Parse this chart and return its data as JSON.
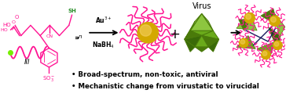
{
  "background_color": "#ffffff",
  "bullet1": "Broad-spectrum, non-toxic, antiviral",
  "bullet2": "Mechanistic change from virustatic to virucidal",
  "polymer_color": "#ff1493",
  "green_color": "#228b22",
  "bright_green": "#77ee00",
  "nanoparticle_core": "#d4a800",
  "nanoparticle_hi": "#f5d060",
  "virus_light": "#8dc63f",
  "virus_mid": "#6aaa1a",
  "virus_dark": "#4a7a0a",
  "virus_darkest": "#3a6a08",
  "navy": "#1a1a5e",
  "arrow_color": "#000000",
  "reagent1": "Au$^{3+}$",
  "reagent2": "NaBH$_4$",
  "virus_label": "Virus",
  "raft_label": "III"
}
